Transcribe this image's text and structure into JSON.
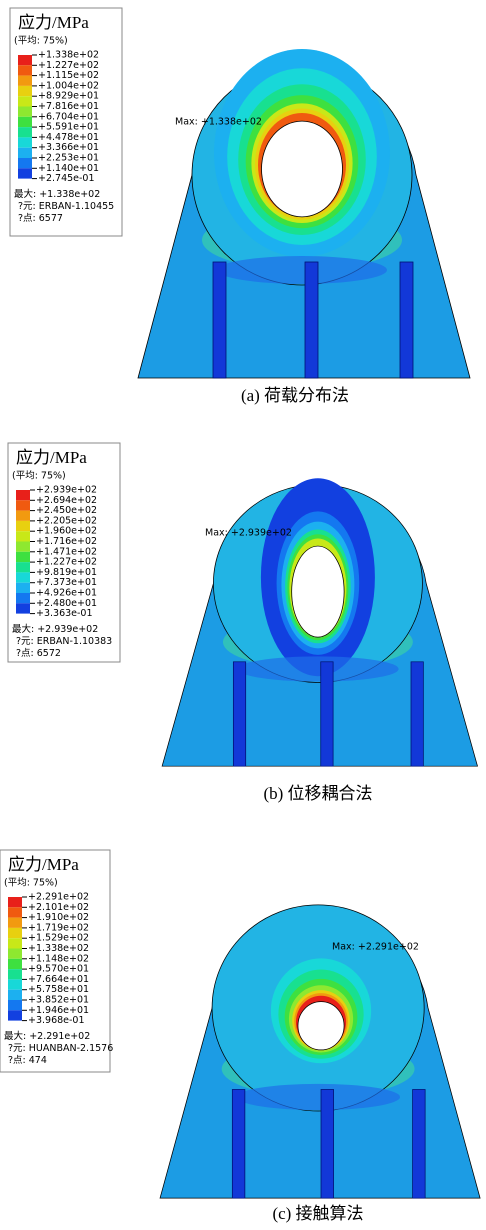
{
  "legend_colors": [
    "#e8201a",
    "#f05a10",
    "#f29a10",
    "#e8d010",
    "#c8e818",
    "#8ee830",
    "#3ee040",
    "#18e090",
    "#18d8d8",
    "#1cb0f0",
    "#1478f0",
    "#1240e0"
  ],
  "panels": [
    {
      "legend_title": "应力/MPa",
      "averaging": "(平均: 75%)",
      "levels": [
        "+1.338e+02",
        "+1.227e+02",
        "+1.115e+02",
        "+1.004e+02",
        "+8.929e+01",
        "+7.816e+01",
        "+6.704e+01",
        "+5.591e+01",
        "+4.478e+01",
        "+3.366e+01",
        "+2.253e+01",
        "+1.140e+01",
        "+2.745e-01"
      ],
      "max_label": "最大: +1.338e+02",
      "element": "?元: ERBAN-1.10455",
      "node": "?点: 6577",
      "max_annotation": "Max: +1.338e+02",
      "caption": "(a)  荷载分布法"
    },
    {
      "legend_title": "应力/MPa",
      "averaging": "(平均: 75%)",
      "levels": [
        "+2.939e+02",
        "+2.694e+02",
        "+2.450e+02",
        "+2.205e+02",
        "+1.960e+02",
        "+1.716e+02",
        "+1.471e+02",
        "+1.227e+02",
        "+9.819e+01",
        "+7.373e+01",
        "+4.926e+01",
        "+2.480e+01",
        "+3.363e-01"
      ],
      "max_label": "最大: +2.939e+02",
      "element": "?元: ERBAN-1.10383",
      "node": "?点: 6572",
      "max_annotation": "Max: +2.939e+02",
      "caption": "(b)  位移耦合法"
    },
    {
      "legend_title": "应力/MPa",
      "averaging": "(平均: 75%)",
      "levels": [
        "+2.291e+02",
        "+2.101e+02",
        "+1.910e+02",
        "+1.719e+02",
        "+1.529e+02",
        "+1.338e+02",
        "+1.148e+02",
        "+9.570e+01",
        "+7.664e+01",
        "+5.758e+01",
        "+3.852e+01",
        "+1.946e+01",
        "+3.968e-01"
      ],
      "max_label": "最大: +2.291e+02",
      "element": "?元: HUANBAN-2.1576",
      "node": "?点: 474",
      "max_annotation": "Max: +2.291e+02",
      "caption": "(c)  接触算法"
    }
  ]
}
